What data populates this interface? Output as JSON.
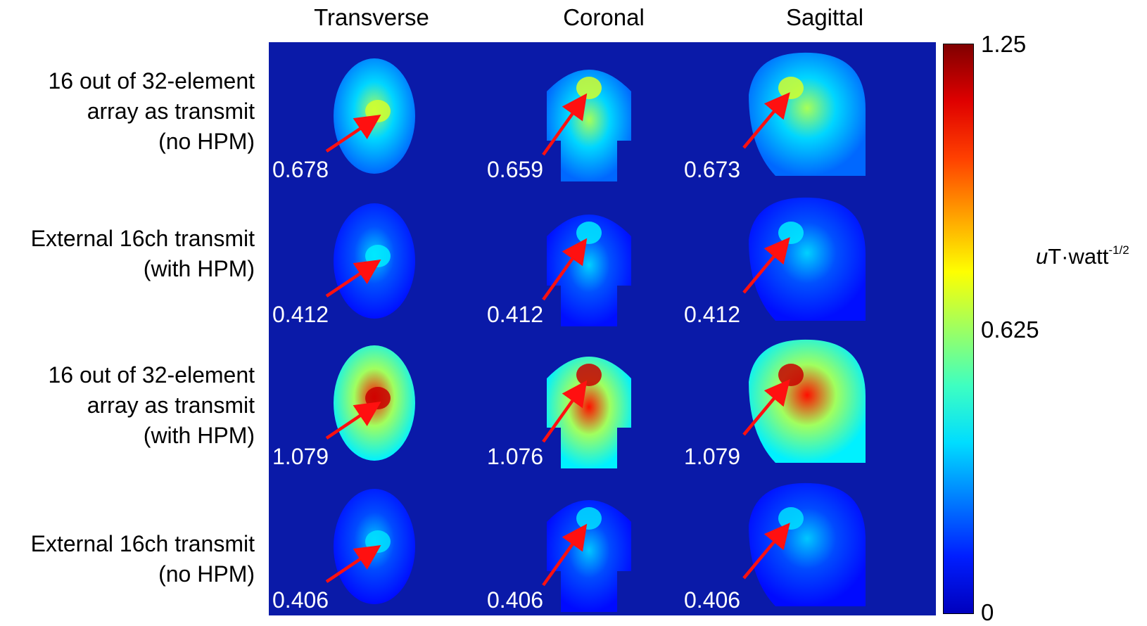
{
  "columns": [
    "Transverse",
    "Coronal",
    "Sagittal"
  ],
  "rows": [
    {
      "label_lines": [
        "16 out of 32-element",
        "array as transmit",
        "(no HPM)"
      ],
      "values": [
        "0.678",
        "0.659",
        "0.673"
      ],
      "intensity": 0.54
    },
    {
      "label_lines": [
        "External 16ch transmit",
        "(with HPM)"
      ],
      "values": [
        "0.412",
        "0.412",
        "0.412"
      ],
      "intensity": 0.33
    },
    {
      "label_lines": [
        "16 out of 32-element",
        "array as transmit",
        "(with HPM)"
      ],
      "values": [
        "1.079",
        "1.076",
        "1.079"
      ],
      "intensity": 0.86
    },
    {
      "label_lines": [
        "External 16ch transmit",
        "(no HPM)"
      ],
      "values": [
        "0.406",
        "0.406",
        "0.406"
      ],
      "intensity": 0.32
    }
  ],
  "colorbar": {
    "max_label": "1.25",
    "mid_label": "0.625",
    "min_label": "0",
    "unit_prefix": "u",
    "unit_main": "T·watt",
    "unit_exp": "-1/2",
    "colormap": "jet"
  },
  "colors": {
    "background": "#0a1aa8",
    "arrow": "#ff1010",
    "value_text": "#ffffff"
  }
}
